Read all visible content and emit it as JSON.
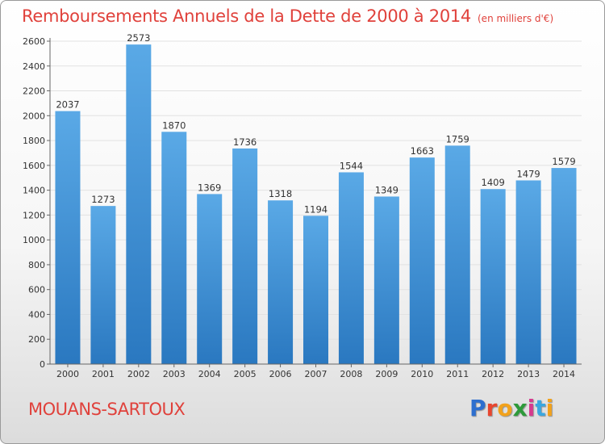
{
  "header": {
    "title": "Remboursements Annuels de la Dette de 2000 à 2014",
    "subtitle": "(en milliers d'€)"
  },
  "footer": {
    "city": "MOUANS-SARTOUX",
    "logo": "Proxiti"
  },
  "colors": {
    "title": "#e0413b",
    "bar_top": "#5aa9e6",
    "bar_bottom": "#2a78c0",
    "grid": "#e2e2e2"
  },
  "chart_data": {
    "type": "bar",
    "categories": [
      "2000",
      "2001",
      "2002",
      "2003",
      "2004",
      "2005",
      "2006",
      "2007",
      "2008",
      "2009",
      "2010",
      "2011",
      "2012",
      "2013",
      "2014"
    ],
    "values": [
      2037,
      1273,
      2573,
      1870,
      1369,
      1736,
      1318,
      1194,
      1544,
      1349,
      1663,
      1759,
      1409,
      1479,
      1579
    ],
    "title": "Remboursements Annuels de la Dette de 2000 à 2014",
    "xlabel": "",
    "ylabel": "",
    "ylim": [
      0,
      2600
    ],
    "yticks": [
      0,
      200,
      400,
      600,
      800,
      1000,
      1200,
      1400,
      1600,
      1800,
      2000,
      2200,
      2400,
      2600
    ],
    "grid": true,
    "data_labels": true
  }
}
